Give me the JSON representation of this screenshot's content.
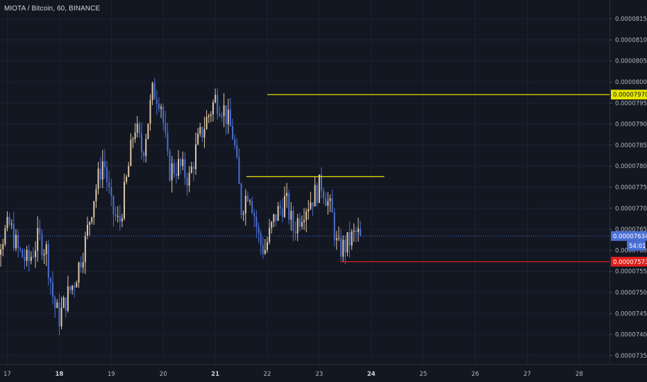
{
  "header": {
    "symbol_title": "MIOTA / Bitcoin, 60, BINANCE"
  },
  "countdown": "54:01",
  "colors": {
    "background": "#131722",
    "grid": "#1e2230",
    "candle": "#e0c9a6",
    "candle_alt": "#4a6fd4",
    "current_price": "#4a6fd4",
    "resistance": "#e6e600",
    "support": "#e0201b",
    "axis_text": "#b2b5be"
  },
  "chart_data": {
    "type": "candlestick",
    "title": "MIOTA / Bitcoin, 60, BINANCE",
    "xlabel": "",
    "ylabel": "",
    "x_ticks": [
      "17",
      "18",
      "19",
      "20",
      "21",
      "22",
      "23",
      "24",
      "25",
      "26",
      "27",
      "28"
    ],
    "bold_x_ticks": [
      "18",
      "21",
      "24"
    ],
    "y_ticks": [
      "0.00007350",
      "0.00007400",
      "0.00007450",
      "0.00007500",
      "0.00007550",
      "0.00007600",
      "0.00007650",
      "0.00007700",
      "0.00007750",
      "0.00007800",
      "0.00007850",
      "0.00007900",
      "0.00007950",
      "0.00008000",
      "0.00008050",
      "0.00008100",
      "0.00008150"
    ],
    "ylim": [
      7.335e-05,
      8.175e-05
    ],
    "current_price": "0.00007634",
    "current_price_value": 7.634e-05,
    "horizontal_lines": [
      {
        "value": 7.97e-05,
        "label": "0.00007970",
        "role": "resistance",
        "from_day": 22.0,
        "labeled": true
      },
      {
        "value": 7.775e-05,
        "label": "",
        "role": "resistance",
        "from_day": 21.6,
        "to_day": 24.25,
        "labeled": false
      },
      {
        "value": 7.573e-05,
        "label": "0.00007573",
        "role": "support",
        "from_day": 23.4,
        "labeled": true
      }
    ],
    "price_path": [
      [
        16.5,
        7.52e-05
      ],
      [
        16.7,
        7.59e-05
      ],
      [
        16.9,
        7.63e-05
      ],
      [
        17.05,
        7.66e-05
      ],
      [
        17.2,
        7.6e-05
      ],
      [
        17.4,
        7.57e-05
      ],
      [
        17.6,
        7.63e-05
      ],
      [
        17.75,
        7.6e-05
      ],
      [
        17.9,
        7.47e-05
      ],
      [
        18.0,
        7.44e-05
      ],
      [
        18.15,
        7.49e-05
      ],
      [
        18.3,
        7.53e-05
      ],
      [
        18.5,
        7.62e-05
      ],
      [
        18.65,
        7.72e-05
      ],
      [
        18.85,
        7.82e-05
      ],
      [
        19.0,
        7.7e-05
      ],
      [
        19.15,
        7.66e-05
      ],
      [
        19.3,
        7.77e-05
      ],
      [
        19.45,
        7.9e-05
      ],
      [
        19.6,
        7.83e-05
      ],
      [
        19.8,
        7.98e-05
      ],
      [
        19.95,
        7.96e-05
      ],
      [
        20.1,
        7.79e-05
      ],
      [
        20.3,
        7.8e-05
      ],
      [
        20.5,
        7.77e-05
      ],
      [
        20.65,
        7.85e-05
      ],
      [
        20.8,
        7.9e-05
      ],
      [
        21.0,
        7.96e-05
      ],
      [
        21.15,
        7.94e-05
      ],
      [
        21.35,
        7.87e-05
      ],
      [
        21.5,
        7.7e-05
      ],
      [
        21.65,
        7.75e-05
      ],
      [
        21.85,
        7.62e-05
      ],
      [
        21.95,
        7.6e-05
      ],
      [
        22.15,
        7.68e-05
      ],
      [
        22.35,
        7.72e-05
      ],
      [
        22.5,
        7.65e-05
      ],
      [
        22.7,
        7.7e-05
      ],
      [
        22.9,
        7.73e-05
      ],
      [
        23.05,
        7.76e-05
      ],
      [
        23.25,
        7.68e-05
      ],
      [
        23.35,
        7.6e-05
      ],
      [
        23.5,
        7.61e-05
      ],
      [
        23.7,
        7.64e-05
      ],
      [
        23.8,
        7.634e-05
      ]
    ]
  }
}
